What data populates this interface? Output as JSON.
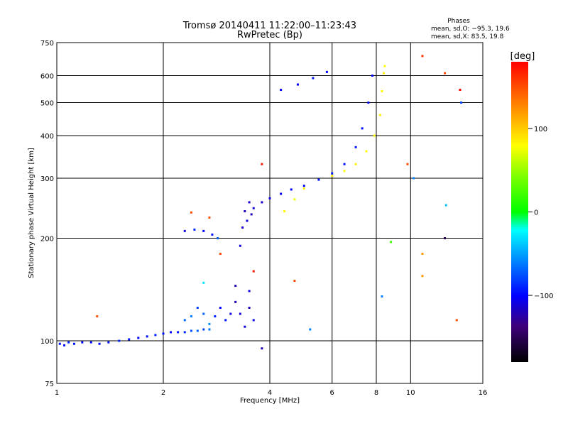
{
  "chart_data": {
    "type": "scatter",
    "title": "Tromsø 20140411 11:22:00–11:23:43",
    "subtitle": "RwPretec (Bp)",
    "xlabel": "Frequency [MHz]",
    "ylabel": "Stationary phase Virtual Height [km]",
    "x_scale": "log",
    "y_scale": "log",
    "xlim": [
      1,
      16
    ],
    "ylim": [
      75,
      750
    ],
    "x_ticks": [
      1,
      2,
      4,
      6,
      8,
      10,
      16
    ],
    "y_ticks": [
      75,
      100,
      200,
      300,
      400,
      500,
      600,
      750
    ],
    "grid": true,
    "stats": {
      "heading": "Phases",
      "o_line": "mean, sd,O: −95.3, 19.6",
      "x_line": "mean, sd,X:  83.5, 19.8"
    },
    "colorbar": {
      "label": "[deg]",
      "range": [
        -180,
        180
      ],
      "ticks": [
        100,
        0,
        -100
      ],
      "tick_labels": [
        "100",
        "0",
        "−100"
      ]
    },
    "series": [
      {
        "role": "E-region trace",
        "points": [
          [
            1.02,
            98,
            -95
          ],
          [
            1.05,
            97,
            -100
          ],
          [
            1.08,
            99,
            -90
          ],
          [
            1.12,
            98,
            -95
          ],
          [
            1.18,
            99,
            -100
          ],
          [
            1.25,
            99,
            -95
          ],
          [
            1.32,
            98,
            -100
          ],
          [
            1.4,
            99,
            -95
          ],
          [
            1.5,
            100,
            -90
          ],
          [
            1.6,
            101,
            -95
          ],
          [
            1.7,
            102,
            -100
          ],
          [
            1.8,
            103,
            -95
          ],
          [
            1.9,
            104,
            -90
          ],
          [
            2.0,
            105,
            -95
          ],
          [
            2.1,
            106,
            -100
          ],
          [
            2.2,
            106,
            -95
          ],
          [
            2.3,
            106,
            -90
          ],
          [
            2.4,
            107,
            -75
          ],
          [
            2.5,
            107,
            -70
          ],
          [
            2.6,
            108,
            -80
          ],
          [
            2.7,
            108,
            -65
          ]
        ]
      },
      {
        "role": "Es patches",
        "points": [
          [
            2.3,
            115,
            -70
          ],
          [
            2.4,
            118,
            -60
          ],
          [
            2.5,
            125,
            -80
          ],
          [
            2.6,
            120,
            -70
          ],
          [
            2.7,
            112,
            -55
          ],
          [
            2.8,
            118,
            -90
          ],
          [
            2.9,
            125,
            -100
          ],
          [
            3.0,
            115,
            -95
          ],
          [
            3.1,
            120,
            -110
          ],
          [
            3.2,
            130,
            -120
          ],
          [
            3.3,
            120,
            -115
          ],
          [
            3.4,
            110,
            -110
          ],
          [
            3.5,
            125,
            -120
          ],
          [
            3.6,
            115,
            -105
          ],
          [
            3.5,
            140,
            -110
          ],
          [
            3.2,
            145,
            -120
          ]
        ]
      },
      {
        "role": "F-region O trace",
        "points": [
          [
            2.3,
            210,
            -110
          ],
          [
            2.45,
            212,
            -90
          ],
          [
            2.6,
            210,
            -100
          ],
          [
            2.75,
            205,
            -95
          ],
          [
            2.85,
            200,
            -70
          ],
          [
            3.3,
            190,
            -110
          ],
          [
            3.35,
            215,
            -115
          ],
          [
            3.4,
            240,
            -120
          ],
          [
            3.45,
            225,
            -110
          ],
          [
            3.5,
            255,
            -115
          ],
          [
            3.55,
            235,
            -120
          ],
          [
            3.6,
            245,
            -110
          ],
          [
            3.8,
            255,
            -115
          ],
          [
            4.0,
            262,
            -110
          ],
          [
            4.3,
            270,
            -105
          ],
          [
            4.6,
            278,
            -100
          ],
          [
            5.0,
            285,
            -100
          ],
          [
            5.5,
            297,
            -95
          ],
          [
            6.0,
            310,
            -95
          ],
          [
            6.5,
            330,
            -95
          ],
          [
            7.0,
            370,
            -95
          ],
          [
            7.3,
            420,
            -95
          ],
          [
            7.6,
            500,
            -100
          ],
          [
            7.8,
            600,
            -100
          ],
          [
            4.3,
            545,
            -105
          ],
          [
            4.8,
            565,
            -100
          ],
          [
            5.3,
            590,
            -95
          ],
          [
            5.8,
            615,
            -100
          ]
        ]
      },
      {
        "role": "F-region X trace",
        "points": [
          [
            4.4,
            240,
            80
          ],
          [
            4.7,
            260,
            75
          ],
          [
            5.0,
            280,
            85
          ],
          [
            6.0,
            305,
            85
          ],
          [
            6.5,
            315,
            80
          ],
          [
            7.0,
            330,
            85
          ],
          [
            7.5,
            360,
            80
          ],
          [
            7.9,
            400,
            80
          ],
          [
            8.2,
            460,
            85
          ],
          [
            8.3,
            540,
            80
          ],
          [
            8.4,
            610,
            85
          ],
          [
            8.45,
            640,
            80
          ]
        ]
      },
      {
        "role": "scattered noise",
        "points": [
          [
            1.3,
            118,
            150
          ],
          [
            2.4,
            238,
            150
          ],
          [
            2.7,
            230,
            150
          ],
          [
            2.9,
            180,
            150
          ],
          [
            2.6,
            148,
            -30
          ],
          [
            3.8,
            330,
            170
          ],
          [
            3.6,
            160,
            170
          ],
          [
            3.8,
            95,
            -120
          ],
          [
            4.7,
            150,
            150
          ],
          [
            5.2,
            108,
            -60
          ],
          [
            9.8,
            330,
            150
          ],
          [
            8.3,
            135,
            -60
          ],
          [
            10.2,
            300,
            -60
          ],
          [
            10.8,
            685,
            160
          ],
          [
            10.8,
            180,
            120
          ],
          [
            10.8,
            155,
            120
          ],
          [
            12.6,
            250,
            -40
          ],
          [
            12.5,
            200,
            -150
          ],
          [
            13.5,
            115,
            150
          ],
          [
            13.8,
            545,
            180
          ],
          [
            13.9,
            500,
            -80
          ],
          [
            12.5,
            610,
            150
          ],
          [
            8.8,
            195,
            20
          ]
        ]
      }
    ]
  }
}
